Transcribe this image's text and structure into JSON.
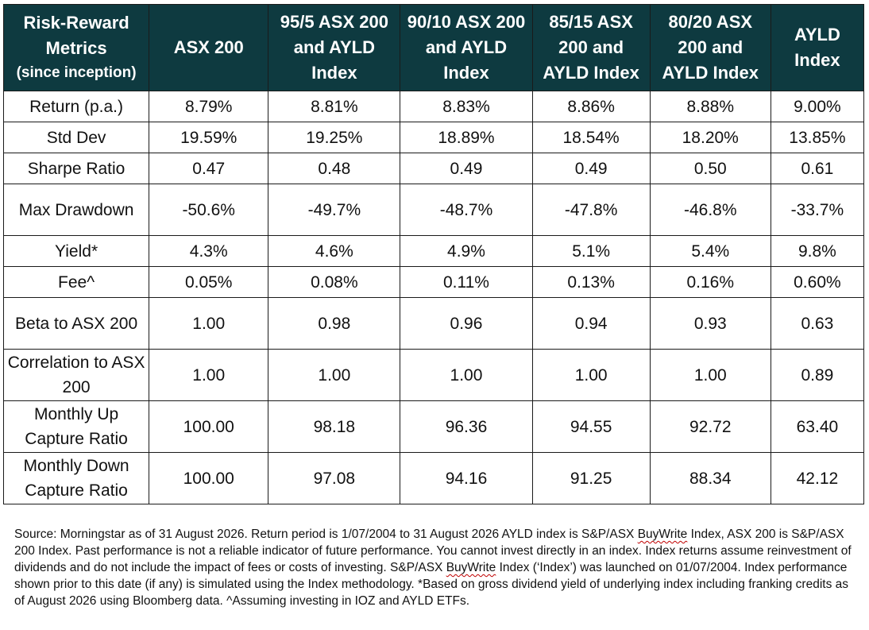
{
  "table": {
    "header": {
      "metrics_title": "Risk-Reward Metrics",
      "metrics_subtitle": "(since inception)",
      "columns": [
        "ASX 200",
        "95/5 ASX 200 and AYLD Index",
        "90/10 ASX 200 and AYLD Index",
        "85/15 ASX 200 and AYLD Index",
        "80/20 ASX 200 and AYLD Index",
        "AYLD Index"
      ]
    },
    "rows": [
      {
        "label": "Return (p.a.)",
        "values": [
          "8.79%",
          "8.81%",
          "8.83%",
          "8.86%",
          "8.88%",
          "9.00%"
        ]
      },
      {
        "label": "Std Dev",
        "values": [
          "19.59%",
          "19.25%",
          "18.89%",
          "18.54%",
          "18.20%",
          "13.85%"
        ]
      },
      {
        "label": "Sharpe Ratio",
        "values": [
          "0.47",
          "0.48",
          "0.49",
          "0.49",
          "0.50",
          "0.61"
        ]
      },
      {
        "label": "Max Drawdown",
        "values": [
          "-50.6%",
          "-49.7%",
          "-48.7%",
          "-47.8%",
          "-46.8%",
          "-33.7%"
        ]
      },
      {
        "label": "Yield*",
        "values": [
          "4.3%",
          "4.6%",
          "4.9%",
          "5.1%",
          "5.4%",
          "9.8%"
        ]
      },
      {
        "label": "Fee^",
        "values": [
          "0.05%",
          "0.08%",
          "0.11%",
          "0.13%",
          "0.16%",
          "0.60%"
        ]
      },
      {
        "label": "Beta to ASX 200",
        "values": [
          "1.00",
          "0.98",
          "0.96",
          "0.94",
          "0.93",
          "0.63"
        ]
      },
      {
        "label": "Correlation to ASX 200",
        "values": [
          "1.00",
          "1.00",
          "1.00",
          "1.00",
          "1.00",
          "0.89"
        ]
      },
      {
        "label": "Monthly Up Capture Ratio",
        "values": [
          "100.00",
          "98.18",
          "96.36",
          "94.55",
          "92.72",
          "63.40"
        ]
      },
      {
        "label": "Monthly Down Capture Ratio",
        "values": [
          "100.00",
          "97.08",
          "94.16",
          "91.25",
          "88.34",
          "42.12"
        ]
      }
    ]
  },
  "footnote": {
    "part1": "Source: Morningstar as of 31 August 2026. Return period is 1/07/2004 to 31 August 2026 AYLD index is S&P/ASX ",
    "buywrite": "BuyWrite",
    "part2": " Index, ASX 200 is S&P/ASX 200 Index. Past performance is not a reliable indicator of future performance. You cannot invest directly in an index. Index returns assume reinvestment of dividends and do not include the impact of fees or costs of investing. S&P/ASX ",
    "part3": " Index (‘Index’) was launched on 01/07/2004. Index performance shown prior to this date (if any) is simulated using the Index methodology. *Based on gross dividend yield of underlying index including franking credits as of August 2026 using Bloomberg data. ^Assuming investing in IOZ and AYLD ETFs."
  }
}
